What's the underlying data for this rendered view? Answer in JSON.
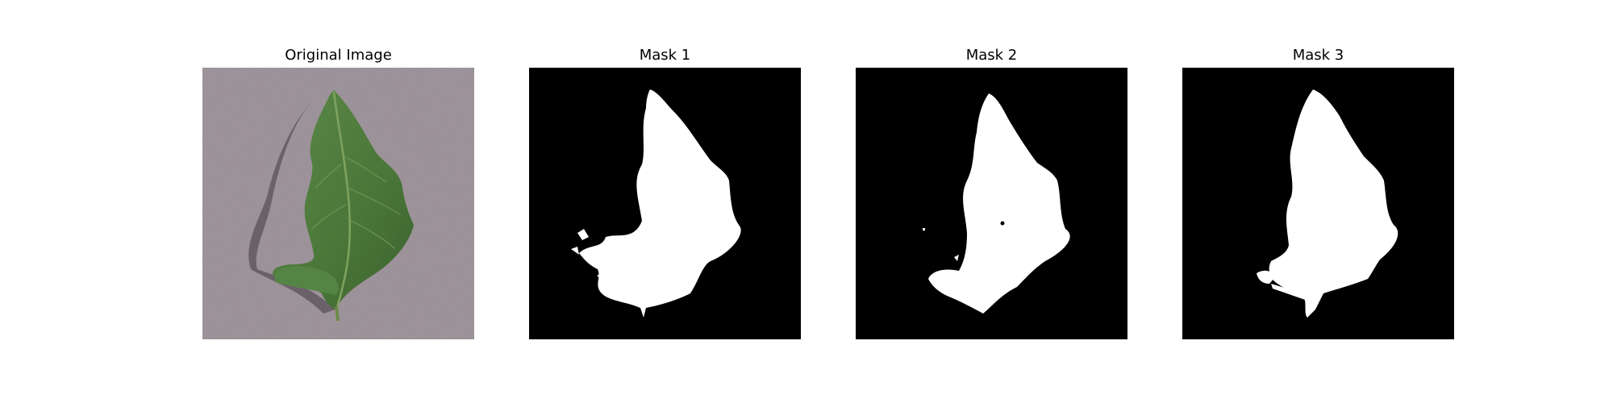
{
  "figure": {
    "panels": [
      {
        "title": "Original Image",
        "content": "photo of a green leaf on a grey textured background"
      },
      {
        "title": "Mask 1",
        "content": "binary segmentation mask"
      },
      {
        "title": "Mask 2",
        "content": "binary segmentation mask"
      },
      {
        "title": "Mask 3",
        "content": "binary segmentation mask"
      }
    ]
  },
  "colors": {
    "figure_background": "#ffffff",
    "mask_foreground": "#ffffff",
    "mask_background": "#000000",
    "leaf_green": "#4d7a3c",
    "surface_grey": "#9a8f97"
  }
}
